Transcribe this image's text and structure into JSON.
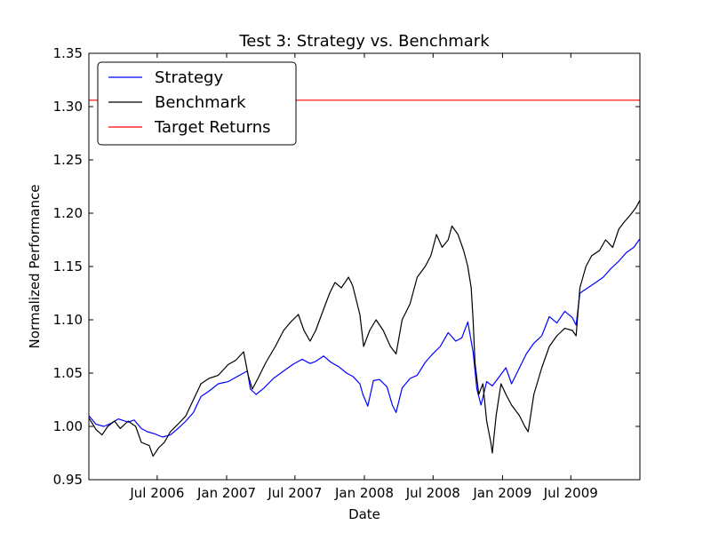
{
  "chart_data": {
    "type": "line",
    "title": "Test 3: Strategy vs. Benchmark",
    "xlabel": "Date",
    "ylabel": "Normalized Performance",
    "ylim": [
      0.95,
      1.35
    ],
    "yticks": [
      "0.95",
      "1.00",
      "1.05",
      "1.10",
      "1.15",
      "1.20",
      "1.25",
      "1.30",
      "1.35"
    ],
    "xlim": [
      "2006-01-01",
      "2009-12-31"
    ],
    "xticks": [
      {
        "date": "2006-07-01",
        "label": "Jul 2006"
      },
      {
        "date": "2007-01-01",
        "label": "Jan 2007"
      },
      {
        "date": "2007-07-01",
        "label": "Jul 2007"
      },
      {
        "date": "2008-01-01",
        "label": "Jan 2008"
      },
      {
        "date": "2008-07-01",
        "label": "Jul 2008"
      },
      {
        "date": "2009-01-01",
        "label": "Jan 2009"
      },
      {
        "date": "2009-07-01",
        "label": "Jul 2009"
      }
    ],
    "grid": false,
    "legend_position": "top-left",
    "series": [
      {
        "name": "Strategy",
        "color": "#0000ff",
        "points": [
          [
            "2006-01-01",
            1.01
          ],
          [
            "2006-01-20",
            1.002
          ],
          [
            "2006-02-10",
            1.0
          ],
          [
            "2006-03-01",
            1.003
          ],
          [
            "2006-03-20",
            1.007
          ],
          [
            "2006-04-15",
            1.004
          ],
          [
            "2006-05-01",
            1.006
          ],
          [
            "2006-05-20",
            0.998
          ],
          [
            "2006-06-05",
            0.995
          ],
          [
            "2006-06-25",
            0.993
          ],
          [
            "2006-07-15",
            0.99
          ],
          [
            "2006-08-05",
            0.992
          ],
          [
            "2006-08-25",
            0.998
          ],
          [
            "2006-09-15",
            1.005
          ],
          [
            "2006-10-05",
            1.013
          ],
          [
            "2006-10-25",
            1.028
          ],
          [
            "2006-11-15",
            1.033
          ],
          [
            "2006-12-10",
            1.04
          ],
          [
            "2007-01-05",
            1.042
          ],
          [
            "2007-01-30",
            1.047
          ],
          [
            "2007-02-25",
            1.052
          ],
          [
            "2007-03-05",
            1.035
          ],
          [
            "2007-03-20",
            1.03
          ],
          [
            "2007-04-10",
            1.036
          ],
          [
            "2007-05-05",
            1.045
          ],
          [
            "2007-06-01",
            1.052
          ],
          [
            "2007-06-25",
            1.058
          ],
          [
            "2007-07-20",
            1.063
          ],
          [
            "2007-08-10",
            1.059
          ],
          [
            "2007-08-25",
            1.061
          ],
          [
            "2007-09-15",
            1.066
          ],
          [
            "2007-10-05",
            1.06
          ],
          [
            "2007-10-25",
            1.056
          ],
          [
            "2007-11-15",
            1.05
          ],
          [
            "2007-12-01",
            1.047
          ],
          [
            "2007-12-20",
            1.04
          ],
          [
            "2007-12-28",
            1.03
          ],
          [
            "2008-01-10",
            1.019
          ],
          [
            "2008-01-25",
            1.043
          ],
          [
            "2008-02-10",
            1.044
          ],
          [
            "2008-03-01",
            1.037
          ],
          [
            "2008-03-15",
            1.02
          ],
          [
            "2008-03-25",
            1.013
          ],
          [
            "2008-04-10",
            1.036
          ],
          [
            "2008-05-01",
            1.045
          ],
          [
            "2008-05-20",
            1.048
          ],
          [
            "2008-06-10",
            1.06
          ],
          [
            "2008-06-30",
            1.068
          ],
          [
            "2008-07-20",
            1.075
          ],
          [
            "2008-08-10",
            1.088
          ],
          [
            "2008-08-30",
            1.08
          ],
          [
            "2008-09-15",
            1.083
          ],
          [
            "2008-10-01",
            1.098
          ],
          [
            "2008-10-15",
            1.07
          ],
          [
            "2008-10-25",
            1.035
          ],
          [
            "2008-11-05",
            1.02
          ],
          [
            "2008-11-20",
            1.042
          ],
          [
            "2008-12-05",
            1.038
          ],
          [
            "2008-12-20",
            1.045
          ],
          [
            "2009-01-10",
            1.055
          ],
          [
            "2009-01-25",
            1.04
          ],
          [
            "2009-02-15",
            1.055
          ],
          [
            "2009-03-05",
            1.068
          ],
          [
            "2009-03-25",
            1.078
          ],
          [
            "2009-04-15",
            1.085
          ],
          [
            "2009-05-05",
            1.103
          ],
          [
            "2009-05-25",
            1.097
          ],
          [
            "2009-06-15",
            1.108
          ],
          [
            "2009-07-05",
            1.102
          ],
          [
            "2009-07-15",
            1.095
          ],
          [
            "2009-07-25",
            1.125
          ],
          [
            "2009-08-15",
            1.13
          ],
          [
            "2009-09-05",
            1.135
          ],
          [
            "2009-09-25",
            1.14
          ],
          [
            "2009-10-15",
            1.148
          ],
          [
            "2009-11-05",
            1.155
          ],
          [
            "2009-11-25",
            1.163
          ],
          [
            "2009-12-15",
            1.168
          ],
          [
            "2009-12-31",
            1.176
          ]
        ]
      },
      {
        "name": "Benchmark",
        "color": "#000000",
        "points": [
          [
            "2006-01-01",
            1.008
          ],
          [
            "2006-01-20",
            0.997
          ],
          [
            "2006-02-05",
            0.992
          ],
          [
            "2006-02-20",
            1.0
          ],
          [
            "2006-03-10",
            1.005
          ],
          [
            "2006-03-25",
            0.998
          ],
          [
            "2006-04-15",
            1.005
          ],
          [
            "2006-05-05",
            1.0
          ],
          [
            "2006-05-20",
            0.985
          ],
          [
            "2006-06-10",
            0.982
          ],
          [
            "2006-06-20",
            0.972
          ],
          [
            "2006-07-05",
            0.98
          ],
          [
            "2006-07-20",
            0.985
          ],
          [
            "2006-08-05",
            0.995
          ],
          [
            "2006-08-25",
            1.002
          ],
          [
            "2006-09-15",
            1.01
          ],
          [
            "2006-10-05",
            1.025
          ],
          [
            "2006-10-25",
            1.04
          ],
          [
            "2006-11-15",
            1.045
          ],
          [
            "2006-12-10",
            1.048
          ],
          [
            "2007-01-05",
            1.058
          ],
          [
            "2007-01-25",
            1.062
          ],
          [
            "2007-02-15",
            1.07
          ],
          [
            "2007-02-27",
            1.048
          ],
          [
            "2007-03-10",
            1.035
          ],
          [
            "2007-03-25",
            1.045
          ],
          [
            "2007-04-15",
            1.06
          ],
          [
            "2007-05-10",
            1.075
          ],
          [
            "2007-06-01",
            1.09
          ],
          [
            "2007-06-20",
            1.098
          ],
          [
            "2007-07-10",
            1.105
          ],
          [
            "2007-07-25",
            1.09
          ],
          [
            "2007-08-10",
            1.08
          ],
          [
            "2007-08-25",
            1.09
          ],
          [
            "2007-09-15",
            1.11
          ],
          [
            "2007-10-01",
            1.125
          ],
          [
            "2007-10-15",
            1.135
          ],
          [
            "2007-11-01",
            1.13
          ],
          [
            "2007-11-20",
            1.14
          ],
          [
            "2007-12-01",
            1.132
          ],
          [
            "2007-12-20",
            1.105
          ],
          [
            "2007-12-30",
            1.075
          ],
          [
            "2008-01-15",
            1.09
          ],
          [
            "2008-02-01",
            1.1
          ],
          [
            "2008-02-20",
            1.09
          ],
          [
            "2008-03-10",
            1.075
          ],
          [
            "2008-03-25",
            1.068
          ],
          [
            "2008-04-10",
            1.1
          ],
          [
            "2008-05-01",
            1.115
          ],
          [
            "2008-05-20",
            1.14
          ],
          [
            "2008-06-10",
            1.15
          ],
          [
            "2008-06-25",
            1.16
          ],
          [
            "2008-07-10",
            1.18
          ],
          [
            "2008-07-25",
            1.168
          ],
          [
            "2008-08-10",
            1.175
          ],
          [
            "2008-08-20",
            1.188
          ],
          [
            "2008-09-05",
            1.18
          ],
          [
            "2008-09-20",
            1.165
          ],
          [
            "2008-10-01",
            1.15
          ],
          [
            "2008-10-10",
            1.13
          ],
          [
            "2008-10-15",
            1.1
          ],
          [
            "2008-10-20",
            1.06
          ],
          [
            "2008-10-30",
            1.03
          ],
          [
            "2008-11-10",
            1.04
          ],
          [
            "2008-11-20",
            1.005
          ],
          [
            "2008-12-01",
            0.985
          ],
          [
            "2008-12-05",
            0.975
          ],
          [
            "2008-12-15",
            1.01
          ],
          [
            "2008-12-28",
            1.04
          ],
          [
            "2009-01-10",
            1.03
          ],
          [
            "2009-01-25",
            1.02
          ],
          [
            "2009-02-15",
            1.01
          ],
          [
            "2009-03-01",
            1.0
          ],
          [
            "2009-03-10",
            0.995
          ],
          [
            "2009-03-25",
            1.03
          ],
          [
            "2009-04-15",
            1.055
          ],
          [
            "2009-05-05",
            1.075
          ],
          [
            "2009-05-25",
            1.085
          ],
          [
            "2009-06-15",
            1.092
          ],
          [
            "2009-07-05",
            1.09
          ],
          [
            "2009-07-15",
            1.085
          ],
          [
            "2009-07-25",
            1.13
          ],
          [
            "2009-08-10",
            1.15
          ],
          [
            "2009-08-25",
            1.16
          ],
          [
            "2009-09-15",
            1.165
          ],
          [
            "2009-10-01",
            1.175
          ],
          [
            "2009-10-20",
            1.168
          ],
          [
            "2009-11-05",
            1.185
          ],
          [
            "2009-11-20",
            1.192
          ],
          [
            "2009-12-05",
            1.198
          ],
          [
            "2009-12-20",
            1.205
          ],
          [
            "2009-12-31",
            1.212
          ]
        ]
      },
      {
        "name": "Target Returns",
        "color": "#ff0000",
        "points": [
          [
            "2006-01-01",
            1.306
          ],
          [
            "2009-12-31",
            1.306
          ]
        ]
      }
    ]
  }
}
